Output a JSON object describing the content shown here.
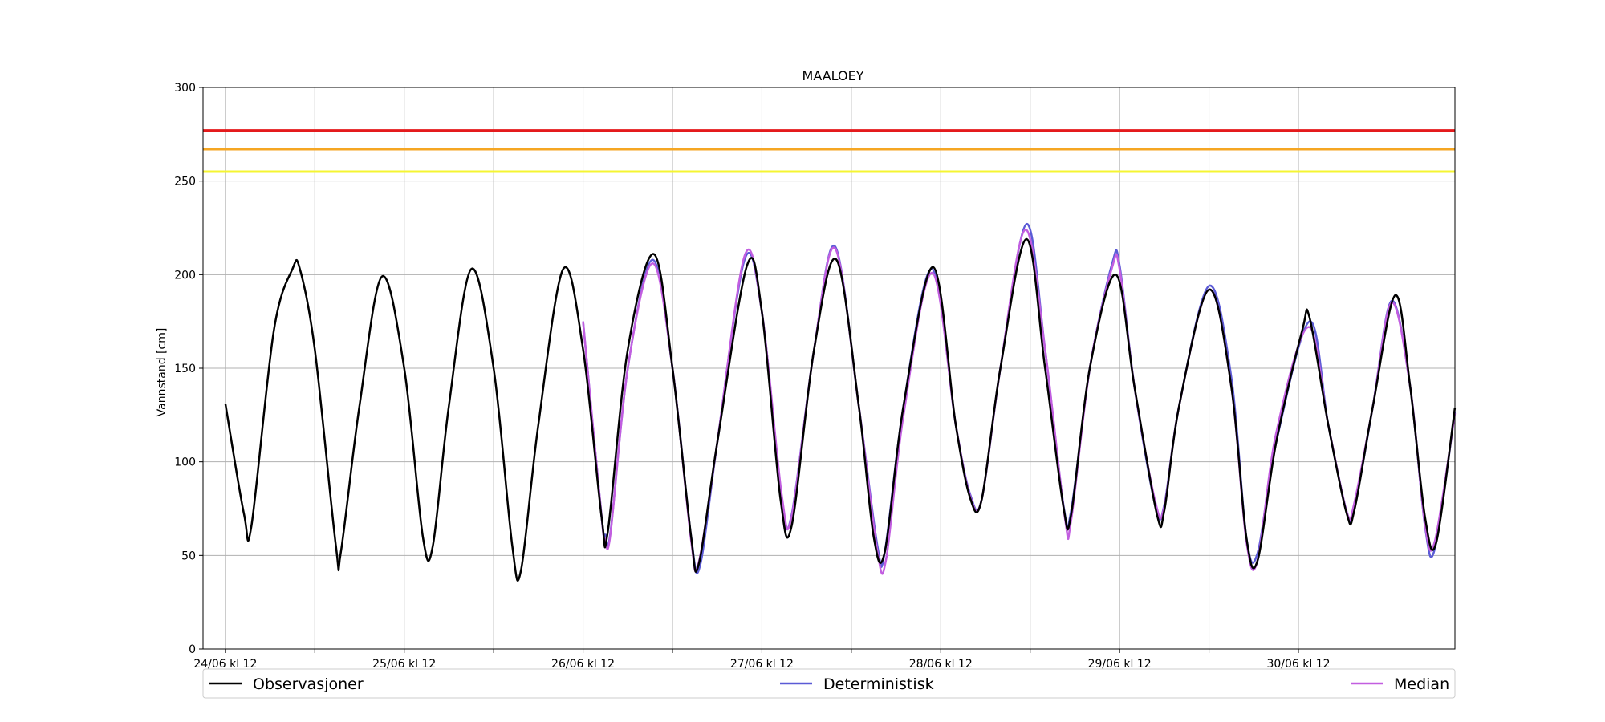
{
  "chart_data": {
    "type": "line",
    "title": "MAALOEY",
    "xlabel": "",
    "ylabel": "Vannstand [cm]",
    "ylim": [
      0,
      300
    ],
    "yticks": [
      0,
      50,
      100,
      150,
      200,
      250,
      300
    ],
    "xlim": [
      "24/06 kl 09",
      "01/07 kl 09"
    ],
    "xtick_labels": [
      "24/06 kl 12",
      "25/06 kl 12",
      "26/06 kl 12",
      "27/06 kl 12",
      "28/06 kl 12",
      "29/06 kl 12",
      "30/06 kl 12"
    ],
    "grid": true,
    "legend_placement": "bottom",
    "thresholds": [
      {
        "value": 277,
        "color": "#e41a1c"
      },
      {
        "value": 267,
        "color": "#f5a623"
      },
      {
        "value": 255,
        "color": "#f5f532"
      }
    ],
    "series": [
      {
        "name": "Observasjoner",
        "color": "#000000",
        "points": [
          [
            "24/06 12:00",
            131
          ],
          [
            "24/06 14:30",
            72
          ],
          [
            "24/06 15:30",
            66
          ],
          [
            "24/06 18:30",
            170
          ],
          [
            "24/06 21:00",
            203
          ],
          [
            "24/06 22:00",
            203
          ],
          [
            "25/06 00:00",
            160
          ],
          [
            "25/06 02:50",
            55
          ],
          [
            "25/06 03:30",
            52
          ],
          [
            "25/06 06:00",
            130
          ],
          [
            "25/06 09:00",
            199
          ],
          [
            "25/06 12:00",
            150
          ],
          [
            "25/06 14:30",
            60
          ],
          [
            "25/06 15:50",
            55
          ],
          [
            "25/06 18:00",
            130
          ],
          [
            "25/06 21:00",
            203
          ],
          [
            "26/06 00:00",
            150
          ],
          [
            "26/06 02:30",
            55
          ],
          [
            "26/06 03:40",
            42
          ],
          [
            "26/06 06:00",
            120
          ],
          [
            "26/06 09:20",
            203
          ],
          [
            "26/06 12:00",
            160
          ],
          [
            "26/06 14:30",
            70
          ],
          [
            "26/06 15:20",
            63
          ],
          [
            "26/06 18:00",
            160
          ],
          [
            "26/06 21:30",
            211
          ],
          [
            "27/06 00:00",
            150
          ],
          [
            "27/06 02:30",
            60
          ],
          [
            "27/06 03:30",
            45
          ],
          [
            "27/06 06:00",
            110
          ],
          [
            "27/06 10:00",
            205
          ],
          [
            "27/06 12:00",
            180
          ],
          [
            "27/06 14:30",
            80
          ],
          [
            "27/06 16:00",
            66
          ],
          [
            "27/06 19:00",
            160
          ],
          [
            "27/06 22:00",
            208
          ],
          [
            "28/06 01:00",
            130
          ],
          [
            "28/06 03:00",
            60
          ],
          [
            "28/06 04:30",
            52
          ],
          [
            "28/06 07:00",
            130
          ],
          [
            "28/06 11:00",
            204
          ],
          [
            "28/06 14:00",
            120
          ],
          [
            "28/06 16:00",
            80
          ],
          [
            "28/06 17:30",
            80
          ],
          [
            "28/06 20:00",
            150
          ],
          [
            "28/06 23:30",
            219
          ],
          [
            "29/06 02:00",
            150
          ],
          [
            "29/06 04:30",
            75
          ],
          [
            "29/06 05:30",
            72
          ],
          [
            "29/06 08:00",
            150
          ],
          [
            "29/06 11:30",
            200
          ],
          [
            "29/06 14:00",
            140
          ],
          [
            "29/06 17:00",
            72
          ],
          [
            "29/06 18:00",
            74
          ],
          [
            "29/06 20:00",
            130
          ],
          [
            "30/06 00:00",
            192
          ],
          [
            "30/06 03:00",
            140
          ],
          [
            "30/06 05:00",
            60
          ],
          [
            "30/06 06:30",
            47
          ],
          [
            "30/06 09:00",
            110
          ],
          [
            "30/06 12:30",
            170
          ],
          [
            "30/06 13:30",
            177
          ],
          [
            "30/06 16:00",
            120
          ],
          [
            "30/06 18:30",
            72
          ],
          [
            "30/06 19:30",
            74
          ],
          [
            "30/06 22:00",
            130
          ],
          [
            "01/07 01:00",
            189
          ],
          [
            "01/07 03:00",
            140
          ],
          [
            "01/07 05:00",
            70
          ],
          [
            "01/07 06:30",
            57
          ],
          [
            "01/07 09:00",
            129
          ]
        ]
      },
      {
        "name": "Deterministisk",
        "color": "#5b5bd6",
        "points": [
          [
            "26/06 12:00",
            175
          ],
          [
            "26/06 14:30",
            70
          ],
          [
            "26/06 15:00",
            61
          ],
          [
            "26/06 15:40",
            62
          ],
          [
            "26/06 18:00",
            150
          ],
          [
            "26/06 21:20",
            208
          ],
          [
            "27/06 00:00",
            150
          ],
          [
            "27/06 02:30",
            60
          ],
          [
            "27/06 03:40",
            44
          ],
          [
            "27/06 06:00",
            110
          ],
          [
            "27/06 09:40",
            208
          ],
          [
            "27/06 12:00",
            180
          ],
          [
            "27/06 14:40",
            80
          ],
          [
            "27/06 16:00",
            72
          ],
          [
            "27/06 19:00",
            160
          ],
          [
            "27/06 21:50",
            215
          ],
          [
            "28/06 01:00",
            130
          ],
          [
            "28/06 03:30",
            55
          ],
          [
            "28/06 04:30",
            52
          ],
          [
            "28/06 07:00",
            130
          ],
          [
            "28/06 10:50",
            203
          ],
          [
            "28/06 14:00",
            120
          ],
          [
            "28/06 16:00",
            82
          ],
          [
            "28/06 17:30",
            80
          ],
          [
            "28/06 20:00",
            150
          ],
          [
            "28/06 23:30",
            227
          ],
          [
            "29/06 02:00",
            160
          ],
          [
            "29/06 04:30",
            76
          ],
          [
            "29/06 05:30",
            74
          ],
          [
            "29/06 08:00",
            150
          ],
          [
            "29/06 11:00",
            206
          ],
          [
            "29/06 12:00",
            205
          ],
          [
            "29/06 14:00",
            140
          ],
          [
            "29/06 16:50",
            76
          ],
          [
            "29/06 18:00",
            77
          ],
          [
            "29/06 20:00",
            130
          ],
          [
            "30/06 00:00",
            194
          ],
          [
            "30/06 03:00",
            145
          ],
          [
            "30/06 05:00",
            60
          ],
          [
            "30/06 06:30",
            51
          ],
          [
            "30/06 09:00",
            110
          ],
          [
            "30/06 13:30",
            175
          ],
          [
            "30/06 16:00",
            120
          ],
          [
            "30/06 18:30",
            73
          ],
          [
            "30/06 19:30",
            75
          ],
          [
            "30/06 22:00",
            130
          ],
          [
            "01/07 00:30",
            186
          ],
          [
            "01/07 03:00",
            140
          ],
          [
            "01/07 05:00",
            65
          ],
          [
            "01/07 06:20",
            54
          ],
          [
            "01/07 09:00",
            127
          ]
        ]
      },
      {
        "name": "Median",
        "color": "#c25ee0",
        "points": [
          [
            "26/06 12:00",
            175
          ],
          [
            "26/06 14:30",
            70
          ],
          [
            "26/06 15:00",
            59
          ],
          [
            "26/06 15:40",
            61
          ],
          [
            "26/06 18:00",
            150
          ],
          [
            "26/06 21:20",
            206
          ],
          [
            "27/06 00:00",
            150
          ],
          [
            "27/06 02:30",
            58
          ],
          [
            "27/06 03:30",
            46
          ],
          [
            "27/06 06:00",
            110
          ],
          [
            "27/06 09:40",
            210
          ],
          [
            "27/06 12:00",
            180
          ],
          [
            "27/06 14:40",
            82
          ],
          [
            "27/06 16:00",
            71
          ],
          [
            "27/06 19:00",
            160
          ],
          [
            "27/06 21:50",
            214
          ],
          [
            "28/06 01:00",
            130
          ],
          [
            "28/06 03:30",
            52
          ],
          [
            "28/06 04:40",
            48
          ],
          [
            "28/06 07:00",
            125
          ],
          [
            "28/06 10:50",
            201
          ],
          [
            "28/06 14:00",
            120
          ],
          [
            "28/06 16:00",
            81
          ],
          [
            "28/06 17:30",
            80
          ],
          [
            "28/06 20:00",
            150
          ],
          [
            "28/06 23:20",
            224
          ],
          [
            "29/06 02:00",
            160
          ],
          [
            "29/06 04:40",
            70
          ],
          [
            "29/06 05:30",
            69
          ],
          [
            "29/06 08:00",
            150
          ],
          [
            "29/06 11:00",
            204
          ],
          [
            "29/06 12:00",
            203
          ],
          [
            "29/06 14:00",
            140
          ],
          [
            "29/06 16:50",
            78
          ],
          [
            "29/06 18:00",
            76
          ],
          [
            "29/06 20:00",
            130
          ],
          [
            "30/06 00:00",
            192
          ],
          [
            "30/06 03:00",
            140
          ],
          [
            "30/06 05:00",
            58
          ],
          [
            "30/06 06:30",
            47
          ],
          [
            "30/06 09:00",
            115
          ],
          [
            "30/06 13:20",
            172
          ],
          [
            "30/06 16:00",
            120
          ],
          [
            "30/06 18:30",
            73
          ],
          [
            "30/06 19:30",
            78
          ],
          [
            "30/06 22:00",
            130
          ],
          [
            "01/07 00:30",
            185
          ],
          [
            "01/07 03:00",
            140
          ],
          [
            "01/07 05:00",
            66
          ],
          [
            "01/07 06:20",
            58
          ],
          [
            "01/07 09:00",
            126
          ]
        ]
      }
    ]
  }
}
